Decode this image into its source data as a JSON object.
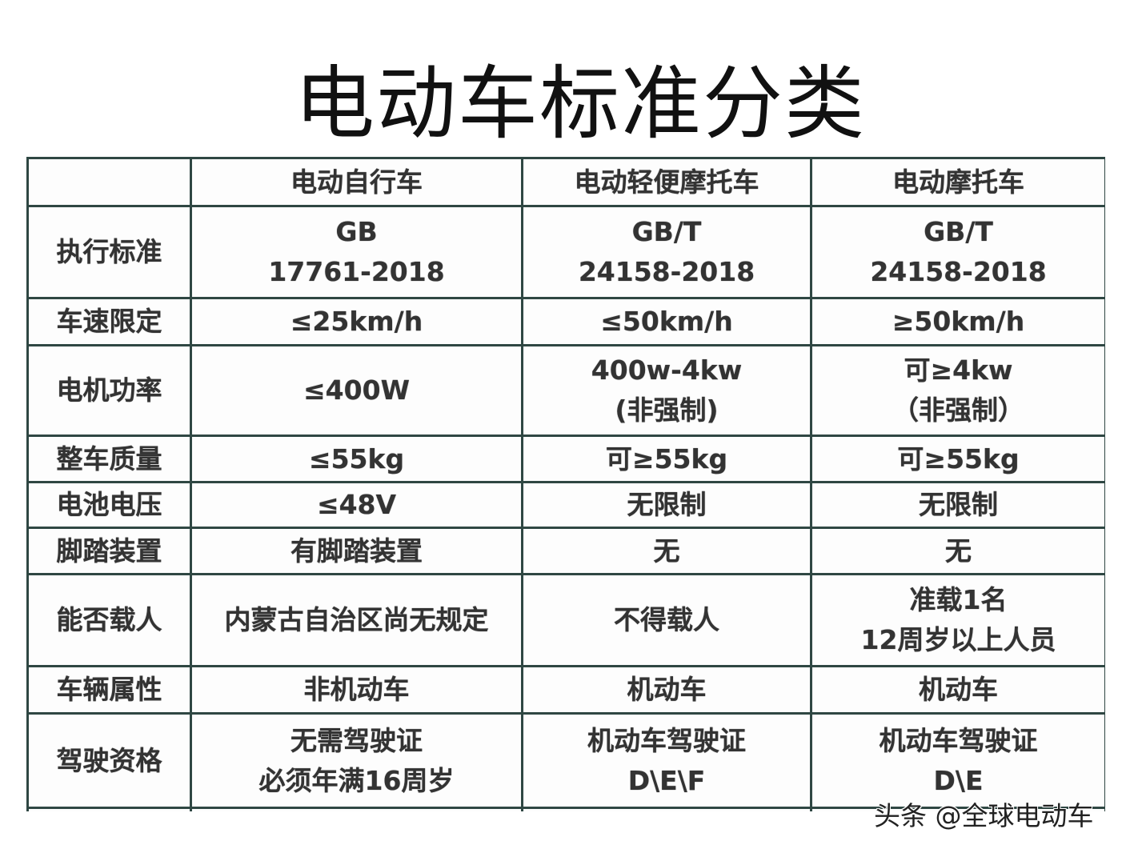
{
  "title": "电动车标准分类",
  "columns": [
    "",
    "电动自行车",
    "电动轻便摩托车",
    "电动摩托车"
  ],
  "rows": [
    {
      "label": "执行标准",
      "cells": [
        [
          "GB",
          "17761-2018"
        ],
        [
          "GB/T",
          "24158-2018"
        ],
        [
          "GB/T",
          "24158-2018"
        ]
      ]
    },
    {
      "label": "车速限定",
      "cells": [
        [
          "≤25km/h"
        ],
        [
          "≤50km/h"
        ],
        [
          "≥50km/h"
        ]
      ]
    },
    {
      "label": "电机功率",
      "cells": [
        [
          "≤400W"
        ],
        [
          "400w-4kw",
          "(非强制)"
        ],
        [
          "可≥4kw",
          "（非强制）"
        ]
      ]
    },
    {
      "label": "整车质量",
      "cells": [
        [
          "≤55kg"
        ],
        [
          "可≥55kg"
        ],
        [
          "可≥55kg"
        ]
      ]
    },
    {
      "label": "电池电压",
      "cells": [
        [
          "≤48V"
        ],
        [
          "无限制"
        ],
        [
          "无限制"
        ]
      ]
    },
    {
      "label": "脚踏装置",
      "cells": [
        [
          "有脚踏装置"
        ],
        [
          "无"
        ],
        [
          "无"
        ]
      ]
    },
    {
      "label": "能否载人",
      "cells": [
        [
          "内蒙古自治区尚无规定"
        ],
        [
          "不得载人"
        ],
        [
          "准载1名",
          "12周岁以上人员"
        ]
      ]
    },
    {
      "label": "车辆属性",
      "cells": [
        [
          "非机动车"
        ],
        [
          "机动车"
        ],
        [
          "机动车"
        ]
      ]
    },
    {
      "label": "驾驶资格",
      "cells": [
        [
          "无需驾驶证",
          "必须年满16周岁"
        ],
        [
          "机动车驾驶证",
          "D\\E\\F"
        ],
        [
          "机动车驾驶证",
          "D\\E"
        ]
      ]
    }
  ],
  "watermark": "头条 @全球电动车",
  "colors": {
    "border": "#2f4743",
    "text": "#333333"
  }
}
